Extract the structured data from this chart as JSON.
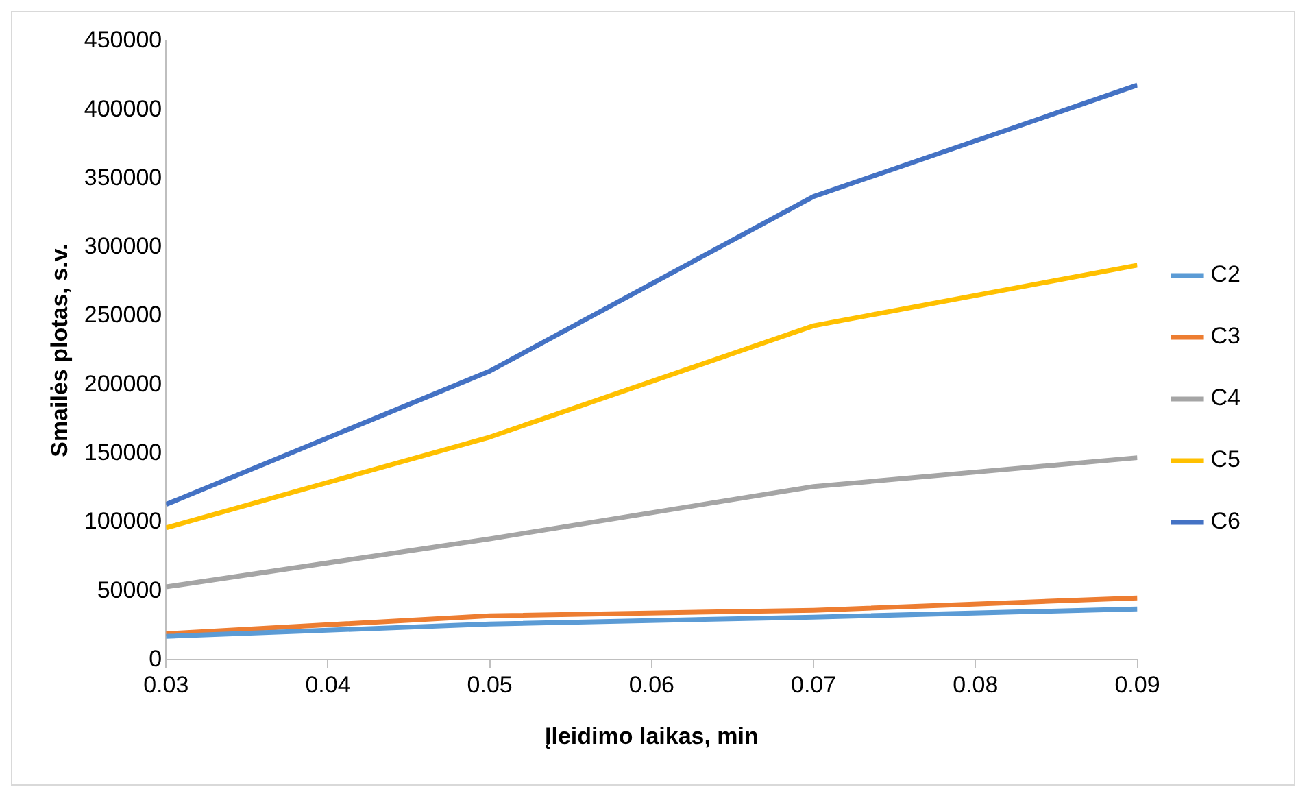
{
  "chart_data": {
    "type": "line",
    "xlabel": "Įleidimo laikas, min",
    "ylabel": "Smailės plotas, s.v.",
    "x": [
      0.03,
      0.05,
      0.07,
      0.09
    ],
    "series": [
      {
        "name": "C2",
        "color": "#5b9bd5",
        "values": [
          17000,
          26000,
          31000,
          37000
        ]
      },
      {
        "name": "C3",
        "color": "#ed7d31",
        "values": [
          19000,
          32000,
          36000,
          45000
        ]
      },
      {
        "name": "C4",
        "color": "#a5a5a5",
        "values": [
          53000,
          88000,
          126000,
          147000
        ]
      },
      {
        "name": "C5",
        "color": "#ffc000",
        "values": [
          96000,
          162000,
          243000,
          287000
        ]
      },
      {
        "name": "C6",
        "color": "#4472c4",
        "values": [
          113000,
          210000,
          337000,
          418000
        ]
      }
    ],
    "xlim": [
      0.03,
      0.09
    ],
    "xticks": [
      {
        "value": 0.03,
        "label": "0.03"
      },
      {
        "value": 0.04,
        "label": "0.04"
      },
      {
        "value": 0.05,
        "label": "0.05"
      },
      {
        "value": 0.06,
        "label": "0.06"
      },
      {
        "value": 0.07,
        "label": "0.07"
      },
      {
        "value": 0.08,
        "label": "0.08"
      },
      {
        "value": 0.09,
        "label": "0.09"
      }
    ],
    "ylim": [
      0,
      450000
    ],
    "yticks": [
      0,
      50000,
      100000,
      150000,
      200000,
      250000,
      300000,
      350000,
      400000,
      450000
    ],
    "grid": false,
    "legend": "right",
    "marker": "none",
    "line_style": "solid"
  }
}
